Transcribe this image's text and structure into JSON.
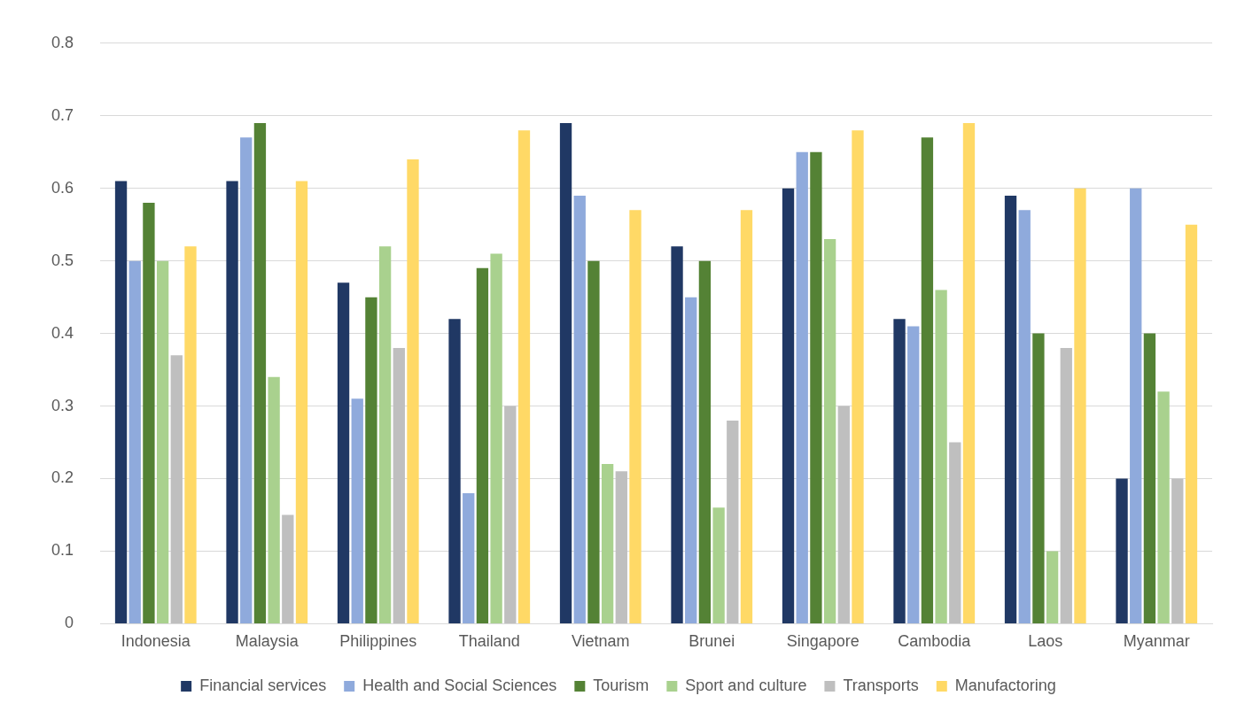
{
  "chart_data": {
    "type": "bar",
    "categories": [
      "Indonesia",
      "Malaysia",
      "Philippines",
      "Thailand",
      "Vietnam",
      "Brunei",
      "Singapore",
      "Cambodia",
      "Laos",
      "Myanmar"
    ],
    "series": [
      {
        "name": "Financial services",
        "color": "#203864",
        "values": [
          0.61,
          0.61,
          0.47,
          0.42,
          0.69,
          0.52,
          0.6,
          0.42,
          0.59,
          0.2
        ]
      },
      {
        "name": "Health and Social Sciences",
        "color": "#8faadc",
        "values": [
          0.5,
          0.67,
          0.31,
          0.18,
          0.59,
          0.45,
          0.65,
          0.41,
          0.57,
          0.6
        ]
      },
      {
        "name": "Tourism",
        "color": "#548235",
        "values": [
          0.58,
          0.69,
          0.45,
          0.49,
          0.5,
          0.5,
          0.65,
          0.67,
          0.4,
          0.4
        ]
      },
      {
        "name": "Sport and culture",
        "color": "#a9d18e",
        "values": [
          0.5,
          0.34,
          0.52,
          0.51,
          0.22,
          0.16,
          0.53,
          0.46,
          0.1,
          0.32
        ]
      },
      {
        "name": "Transports",
        "color": "#bfbfbf",
        "values": [
          0.37,
          0.15,
          0.38,
          0.3,
          0.21,
          0.28,
          0.3,
          0.25,
          0.38,
          0.2
        ]
      },
      {
        "name": "Manufactoring",
        "color": "#ffd966",
        "values": [
          0.52,
          0.61,
          0.64,
          0.68,
          0.57,
          0.57,
          0.68,
          0.69,
          0.6,
          0.55
        ]
      }
    ],
    "ylim": [
      0,
      0.8
    ],
    "yticks": [
      0,
      0.1,
      0.2,
      0.3,
      0.4,
      0.5,
      0.6,
      0.7,
      0.8
    ],
    "grid": "y",
    "legend": "bottom"
  }
}
